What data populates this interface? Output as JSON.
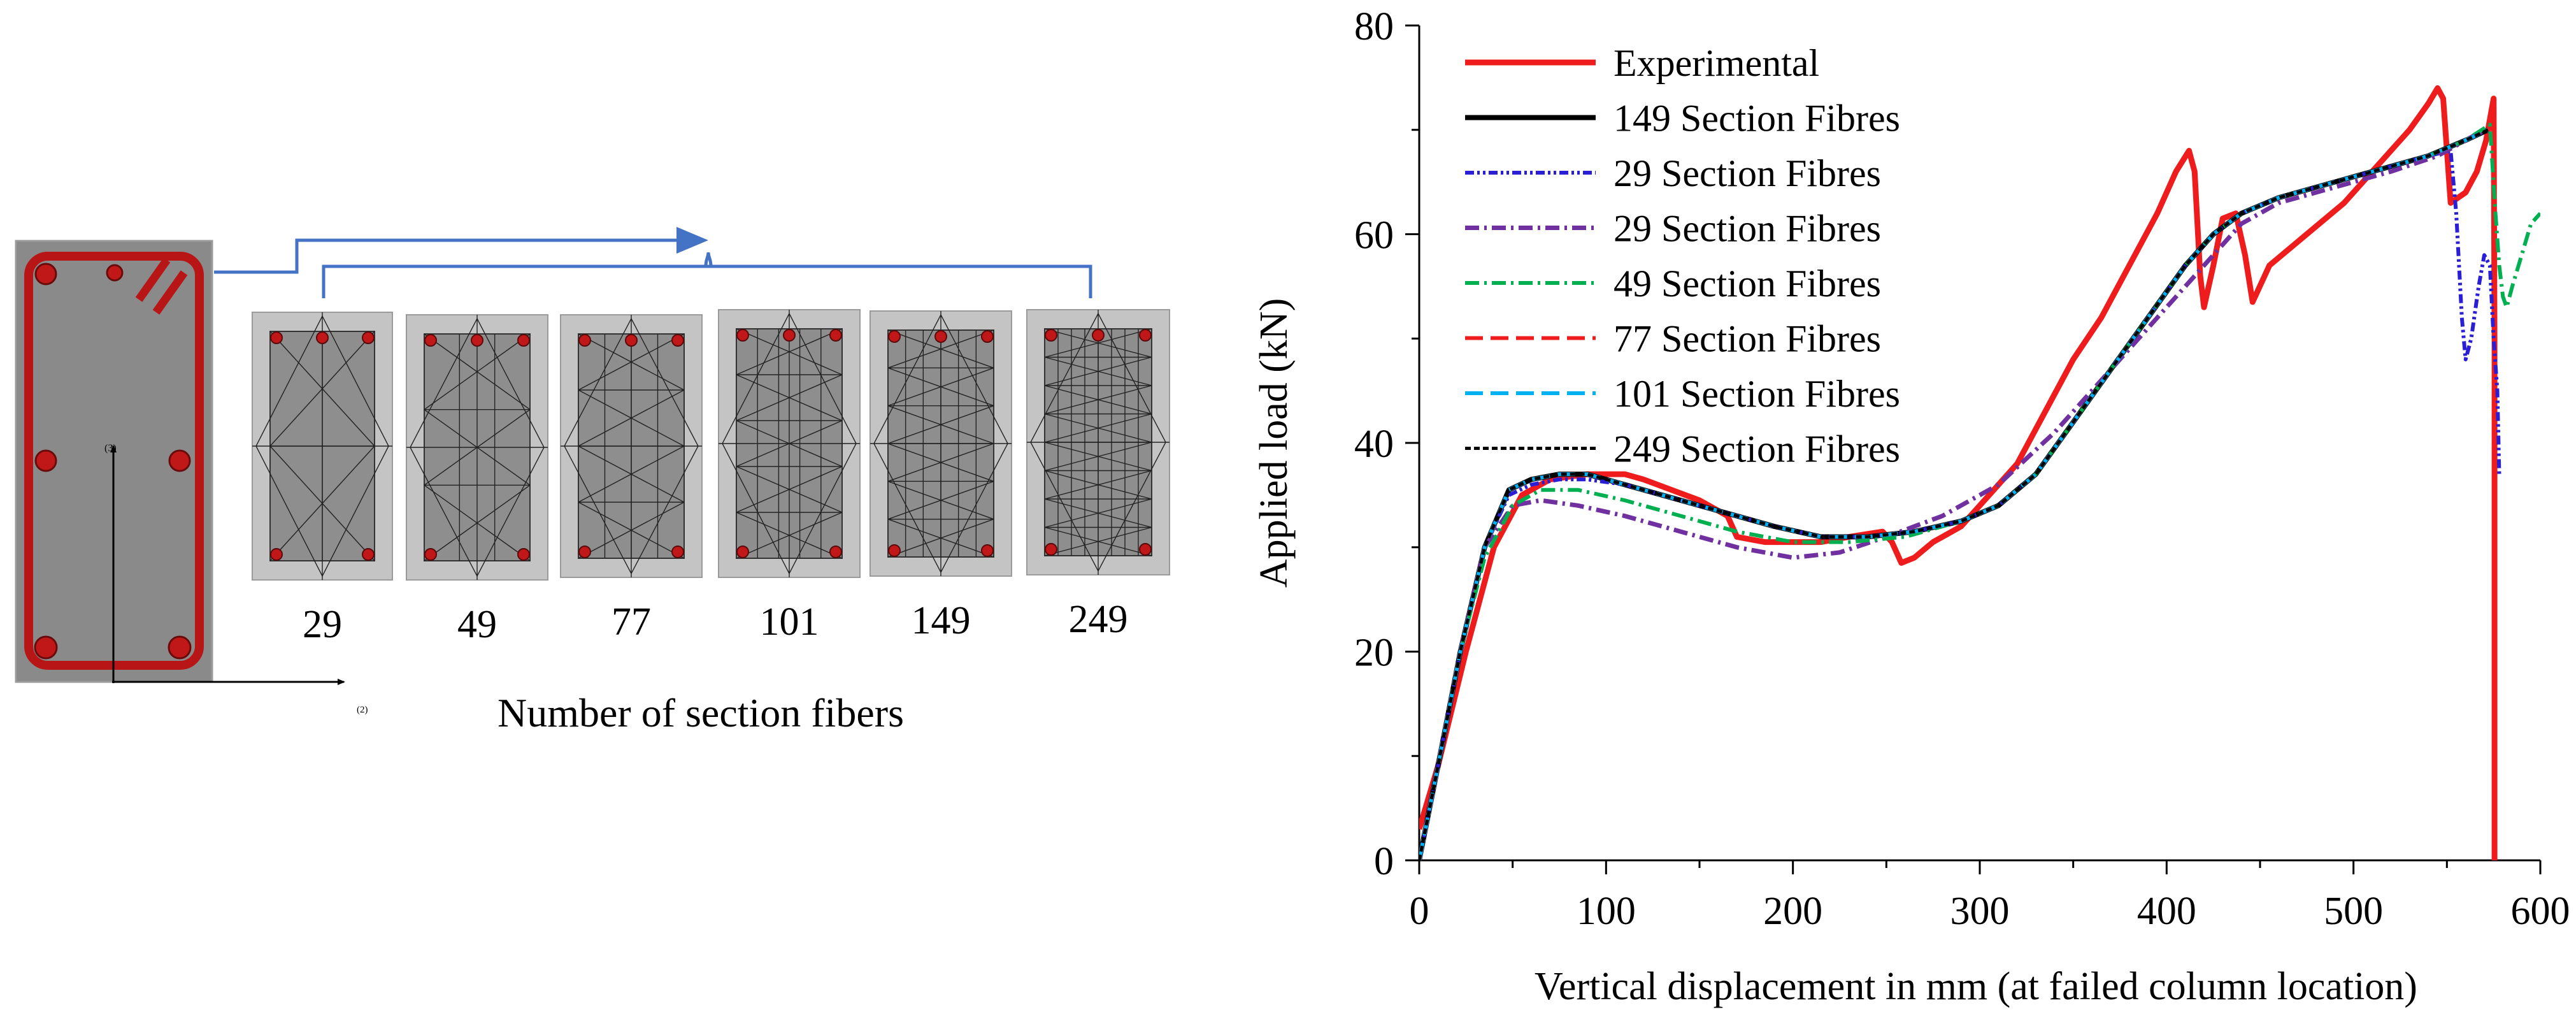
{
  "left_panel": {
    "caption": "Number of section fibers",
    "fiber_counts": [
      "29",
      "49",
      "77",
      "101",
      "149",
      "249"
    ],
    "axis_label_3": "(3)",
    "axis_label_2": "(2)",
    "colors": {
      "section": "#8a8a8a",
      "rebar": "#c01818",
      "arrow": "#4472c4"
    }
  },
  "chart_data": {
    "type": "line",
    "title": "",
    "xlabel": "Vertical displacement in mm (at failed column location)",
    "ylabel": "Applied load (kN)",
    "xlim": [
      0,
      600
    ],
    "ylim": [
      0,
      80
    ],
    "x_ticks": [
      "0",
      "100",
      "200",
      "300",
      "400",
      "500",
      "600"
    ],
    "y_ticks": [
      "0",
      "20",
      "40",
      "60",
      "80"
    ],
    "legend_position": "top-left",
    "series": [
      {
        "name": "Experimental",
        "color": "#ee1c1c",
        "dash": "solid",
        "width": 9,
        "points": [
          [
            0,
            3
          ],
          [
            10,
            9
          ],
          [
            25,
            20
          ],
          [
            40,
            30
          ],
          [
            55,
            35
          ],
          [
            70,
            36.5
          ],
          [
            90,
            37
          ],
          [
            110,
            37
          ],
          [
            120,
            36.5
          ],
          [
            135,
            35.5
          ],
          [
            150,
            34.5
          ],
          [
            165,
            33
          ],
          [
            170,
            31
          ],
          [
            185,
            30.5
          ],
          [
            200,
            30.5
          ],
          [
            215,
            30.5
          ],
          [
            230,
            31
          ],
          [
            248,
            31.5
          ],
          [
            253,
            30.5
          ],
          [
            258,
            28.5
          ],
          [
            265,
            29
          ],
          [
            275,
            30.5
          ],
          [
            290,
            32
          ],
          [
            305,
            35
          ],
          [
            320,
            38
          ],
          [
            335,
            43
          ],
          [
            350,
            48
          ],
          [
            365,
            52
          ],
          [
            380,
            57
          ],
          [
            395,
            62
          ],
          [
            405,
            66
          ],
          [
            412,
            68
          ],
          [
            415,
            66
          ],
          [
            418,
            56
          ],
          [
            420,
            53
          ],
          [
            425,
            57
          ],
          [
            430,
            61.5
          ],
          [
            437,
            62
          ],
          [
            442,
            58
          ],
          [
            446,
            53.5
          ],
          [
            455,
            57
          ],
          [
            475,
            60
          ],
          [
            495,
            63
          ],
          [
            515,
            67
          ],
          [
            530,
            70
          ],
          [
            540,
            72.5
          ],
          [
            545,
            74
          ],
          [
            548,
            73
          ],
          [
            552,
            63
          ],
          [
            556,
            63.5
          ],
          [
            560,
            64
          ],
          [
            566,
            66
          ],
          [
            571,
            69
          ],
          [
            574,
            72
          ],
          [
            575,
            73
          ],
          [
            575.5,
            50
          ],
          [
            575.5,
            0
          ]
        ]
      },
      {
        "name": "149 Section Fibres",
        "color": "#000000",
        "dash": "solid",
        "width": 8,
        "points": [
          [
            0,
            0
          ],
          [
            10,
            9
          ],
          [
            22,
            20
          ],
          [
            35,
            30
          ],
          [
            48,
            35.5
          ],
          [
            60,
            36.5
          ],
          [
            75,
            37
          ],
          [
            90,
            37
          ],
          [
            110,
            36
          ],
          [
            130,
            35
          ],
          [
            150,
            34
          ],
          [
            170,
            33
          ],
          [
            190,
            32
          ],
          [
            215,
            31
          ],
          [
            240,
            31
          ],
          [
            265,
            31.5
          ],
          [
            290,
            32.5
          ],
          [
            310,
            34
          ],
          [
            330,
            37
          ],
          [
            350,
            42
          ],
          [
            370,
            47
          ],
          [
            390,
            52
          ],
          [
            410,
            57
          ],
          [
            425,
            60
          ],
          [
            440,
            62
          ],
          [
            460,
            63.5
          ],
          [
            480,
            64.5
          ],
          [
            500,
            65.5
          ],
          [
            520,
            66.5
          ],
          [
            540,
            67.5
          ],
          [
            560,
            69
          ],
          [
            572,
            70
          ]
        ]
      },
      {
        "name": "29 Section Fibres",
        "color": "#2b1fd6",
        "dash": "14,5,4,5,4,5",
        "width": 6,
        "points": [
          [
            0,
            0
          ],
          [
            10,
            9
          ],
          [
            22,
            20
          ],
          [
            35,
            30
          ],
          [
            48,
            35
          ],
          [
            60,
            36
          ],
          [
            75,
            36.5
          ],
          [
            90,
            36.5
          ],
          [
            110,
            36
          ],
          [
            130,
            35
          ],
          [
            150,
            34
          ],
          [
            170,
            33
          ],
          [
            190,
            32
          ],
          [
            215,
            31
          ],
          [
            240,
            31
          ],
          [
            265,
            31.5
          ],
          [
            290,
            32.5
          ],
          [
            310,
            34
          ],
          [
            330,
            37
          ],
          [
            350,
            42
          ],
          [
            370,
            47
          ],
          [
            390,
            52
          ],
          [
            410,
            57
          ],
          [
            425,
            60
          ],
          [
            440,
            62
          ],
          [
            460,
            63.5
          ],
          [
            480,
            64.5
          ],
          [
            500,
            65.5
          ],
          [
            520,
            66.5
          ],
          [
            540,
            67.5
          ],
          [
            552,
            68
          ],
          [
            555,
            62
          ],
          [
            558,
            52
          ],
          [
            560,
            48
          ],
          [
            563,
            50
          ],
          [
            567,
            55
          ],
          [
            570,
            58
          ],
          [
            573,
            57
          ],
          [
            575,
            50
          ],
          [
            577,
            45
          ],
          [
            578,
            37
          ]
        ]
      },
      {
        "name": "29 Section Fibres",
        "color": "#7030a0",
        "dash": "22,8,4,8",
        "width": 7,
        "points": [
          [
            0,
            0
          ],
          [
            10,
            9
          ],
          [
            22,
            20
          ],
          [
            35,
            30
          ],
          [
            50,
            34
          ],
          [
            65,
            34.5
          ],
          [
            85,
            34
          ],
          [
            110,
            33
          ],
          [
            140,
            31.5
          ],
          [
            170,
            30
          ],
          [
            200,
            29
          ],
          [
            225,
            29.5
          ],
          [
            250,
            31
          ],
          [
            280,
            33
          ],
          [
            310,
            36
          ],
          [
            340,
            41
          ],
          [
            370,
            47
          ],
          [
            400,
            53
          ],
          [
            420,
            57
          ],
          [
            440,
            61
          ],
          [
            460,
            63
          ],
          [
            490,
            64.5
          ],
          [
            520,
            66
          ],
          [
            545,
            67.5
          ],
          [
            565,
            69.5
          ],
          [
            572,
            70
          ]
        ]
      },
      {
        "name": "49 Section Fibres",
        "color": "#00b050",
        "dash": "22,8,4,8",
        "width": 6,
        "points": [
          [
            0,
            0
          ],
          [
            10,
            9
          ],
          [
            22,
            20
          ],
          [
            35,
            29
          ],
          [
            50,
            34
          ],
          [
            65,
            35.5
          ],
          [
            85,
            35.5
          ],
          [
            110,
            34.5
          ],
          [
            140,
            33
          ],
          [
            170,
            31.5
          ],
          [
            200,
            30.5
          ],
          [
            230,
            30.5
          ],
          [
            260,
            31
          ],
          [
            290,
            32.5
          ],
          [
            310,
            34
          ],
          [
            330,
            37
          ],
          [
            350,
            42
          ],
          [
            370,
            47
          ],
          [
            390,
            52
          ],
          [
            410,
            57
          ],
          [
            425,
            60
          ],
          [
            440,
            62
          ],
          [
            460,
            63.5
          ],
          [
            480,
            64.5
          ],
          [
            500,
            65.5
          ],
          [
            520,
            66.5
          ],
          [
            540,
            67.5
          ],
          [
            560,
            69
          ],
          [
            573,
            70.5
          ],
          [
            576,
            62
          ],
          [
            578,
            57
          ],
          [
            580,
            54
          ],
          [
            582,
            53
          ],
          [
            585,
            55
          ],
          [
            590,
            58
          ],
          [
            595,
            61
          ],
          [
            600,
            62
          ]
        ]
      },
      {
        "name": "77 Section Fibres",
        "color": "#ee1c1c",
        "dash": "28,12",
        "width": 6,
        "points": [
          [
            0,
            0
          ],
          [
            10,
            9
          ],
          [
            22,
            20
          ],
          [
            35,
            30
          ],
          [
            48,
            35.5
          ],
          [
            60,
            36.5
          ],
          [
            75,
            37
          ],
          [
            90,
            37
          ],
          [
            110,
            36
          ],
          [
            130,
            35
          ],
          [
            150,
            34
          ],
          [
            170,
            33
          ],
          [
            190,
            32
          ],
          [
            215,
            31
          ],
          [
            240,
            31
          ],
          [
            265,
            31.5
          ],
          [
            290,
            32.5
          ],
          [
            310,
            34
          ],
          [
            330,
            37
          ],
          [
            350,
            42
          ],
          [
            370,
            47
          ],
          [
            390,
            52
          ],
          [
            410,
            57
          ],
          [
            425,
            60
          ],
          [
            440,
            62
          ],
          [
            460,
            63.5
          ],
          [
            480,
            64.5
          ],
          [
            500,
            65.5
          ],
          [
            520,
            66.5
          ],
          [
            540,
            67.5
          ],
          [
            560,
            69
          ],
          [
            572,
            70
          ]
        ]
      },
      {
        "name": "101 Section Fibres",
        "color": "#00b0f0",
        "dash": "28,12",
        "width": 6,
        "points": [
          [
            0,
            0
          ],
          [
            10,
            9
          ],
          [
            22,
            20
          ],
          [
            35,
            30
          ],
          [
            48,
            35.5
          ],
          [
            60,
            36.5
          ],
          [
            75,
            37
          ],
          [
            90,
            37
          ],
          [
            110,
            36
          ],
          [
            130,
            35
          ],
          [
            150,
            34
          ],
          [
            170,
            33
          ],
          [
            190,
            32
          ],
          [
            215,
            31
          ],
          [
            240,
            31
          ],
          [
            265,
            31.5
          ],
          [
            290,
            32.5
          ],
          [
            310,
            34
          ],
          [
            330,
            37
          ],
          [
            350,
            42
          ],
          [
            370,
            47
          ],
          [
            390,
            52
          ],
          [
            410,
            57
          ],
          [
            425,
            60
          ],
          [
            440,
            62
          ],
          [
            460,
            63.5
          ],
          [
            480,
            64.5
          ],
          [
            500,
            65.5
          ],
          [
            520,
            66.5
          ],
          [
            540,
            67.5
          ],
          [
            560,
            69
          ],
          [
            572,
            70
          ]
        ]
      },
      {
        "name": "249 Section Fibres",
        "color": "#000000",
        "dash": "9,5",
        "width": 5,
        "points": [
          [
            0,
            0
          ],
          [
            10,
            9
          ],
          [
            22,
            20
          ],
          [
            35,
            30
          ],
          [
            48,
            35.5
          ],
          [
            60,
            36.5
          ],
          [
            75,
            37
          ],
          [
            90,
            37
          ],
          [
            110,
            36
          ],
          [
            130,
            35
          ],
          [
            150,
            34
          ],
          [
            170,
            33
          ],
          [
            190,
            32
          ],
          [
            215,
            31
          ],
          [
            240,
            31
          ],
          [
            265,
            31.5
          ],
          [
            290,
            32.5
          ],
          [
            310,
            34
          ],
          [
            330,
            37
          ],
          [
            350,
            42
          ],
          [
            370,
            47
          ],
          [
            390,
            52
          ],
          [
            410,
            57
          ],
          [
            425,
            60
          ],
          [
            440,
            62
          ],
          [
            460,
            63.5
          ],
          [
            480,
            64.5
          ],
          [
            500,
            65.5
          ],
          [
            520,
            66.5
          ],
          [
            540,
            67.5
          ],
          [
            560,
            69
          ],
          [
            572,
            70
          ]
        ]
      }
    ]
  }
}
